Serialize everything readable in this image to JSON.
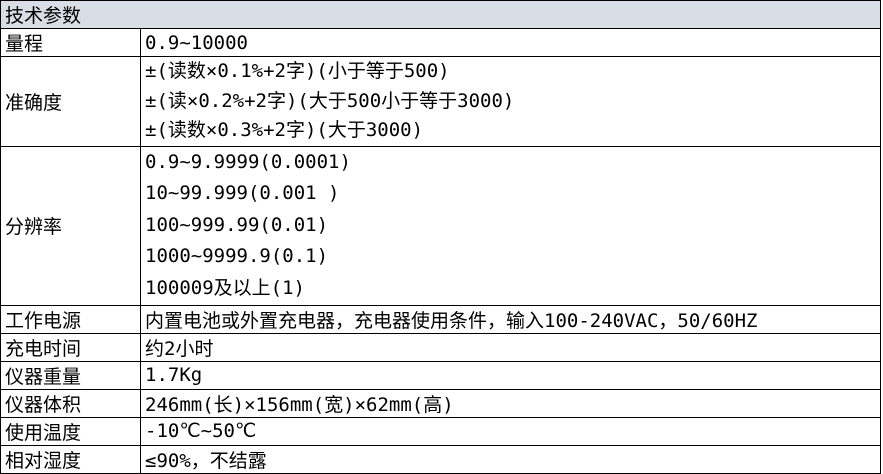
{
  "table": {
    "header": "技术参数",
    "colors": {
      "header_bg": "#d9dee6",
      "border": "#000000",
      "text": "#000000"
    },
    "rows": [
      {
        "label": "量程",
        "lines": [
          "0.9~10000"
        ]
      },
      {
        "label": "准确度",
        "lines": [
          "±(读数×0.1%+2字)(小于等于500)",
          "±(读×0.2%+2字)(大于500小于等于3000)",
          "±(读数×0.3%+2字)(大于3000)"
        ]
      },
      {
        "label": "分辨率",
        "lines": [
          "0.9~9.9999(0.0001)",
          "10~99.999(0.001 )",
          "100~999.99(0.01)",
          "1000~9999.9(0.1)",
          "100009及以上(1)"
        ]
      },
      {
        "label": "工作电源",
        "lines": [
          "内置电池或外置充电器，充电器使用条件，输入100-240VAC，50/60HZ"
        ]
      },
      {
        "label": "充电时间",
        "lines": [
          "约2小时"
        ]
      },
      {
        "label": "仪器重量",
        "lines": [
          "1.7Kg"
        ]
      },
      {
        "label": "仪器体积",
        "lines": [
          "246mm(长)×156mm(宽)×62mm(高)"
        ]
      },
      {
        "label": "使用温度",
        "lines": [
          "-10℃~50℃"
        ]
      },
      {
        "label": "相对湿度",
        "lines": [
          "≤90%，不结露"
        ]
      }
    ]
  }
}
